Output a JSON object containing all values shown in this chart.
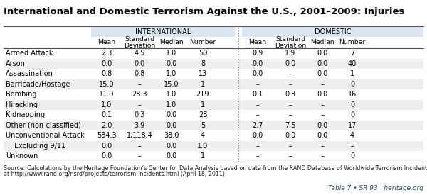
{
  "title": "International and Domestic Terrorism Against the U.S., 2001–2009: Injuries",
  "rows": [
    {
      "label": "Armed Attack",
      "intl": [
        "2.3",
        "4.5",
        "1.0",
        "50"
      ],
      "dom": [
        "0.9",
        "1.9",
        "0.0",
        "7"
      ]
    },
    {
      "label": "Arson",
      "intl": [
        "0.0",
        "0.0",
        "0.0",
        "8"
      ],
      "dom": [
        "0.0",
        "0.0",
        "0.0",
        "40"
      ]
    },
    {
      "label": "Assassination",
      "intl": [
        "0.8",
        "0.8",
        "1.0",
        "13"
      ],
      "dom": [
        "0.0",
        "–",
        "0.0",
        "1"
      ]
    },
    {
      "label": "Barricade/Hostage",
      "intl": [
        "15.0",
        "–",
        "15.0",
        "1"
      ],
      "dom": [
        "–",
        "–",
        "–",
        "0"
      ]
    },
    {
      "label": "Bombing",
      "intl": [
        "11.9",
        "28.3",
        "1.0",
        "219"
      ],
      "dom": [
        "0.1",
        "0.3",
        "0.0",
        "16"
      ]
    },
    {
      "label": "Hijacking",
      "intl": [
        "1.0",
        "–",
        "1.0",
        "1"
      ],
      "dom": [
        "–",
        "–",
        "–",
        "0"
      ]
    },
    {
      "label": "Kidnapping",
      "intl": [
        "0.1",
        "0.3",
        "0.0",
        "28"
      ],
      "dom": [
        "–",
        "–",
        "–",
        "0"
      ]
    },
    {
      "label": "Other (non-classified)",
      "intl": [
        "2.0",
        "3.9",
        "0.0",
        "5"
      ],
      "dom": [
        "2.7",
        "7.5",
        "0.0",
        "17"
      ]
    },
    {
      "label": "Unconventional Attack",
      "intl": [
        "584.3",
        "1,118.4",
        "38.0",
        "4"
      ],
      "dom": [
        "0.0",
        "0.0",
        "0.0",
        "4"
      ]
    },
    {
      "label": "  Excluding 9/11",
      "intl": [
        "0.0",
        "–",
        "0.0",
        "1.0"
      ],
      "dom": [
        "–",
        "–",
        "–",
        "–"
      ]
    },
    {
      "label": "Unknown",
      "intl": [
        "0.0",
        "–",
        "0.0",
        "1"
      ],
      "dom": [
        "–",
        "–",
        "–",
        "0"
      ]
    }
  ],
  "source_line1": "Source: Calculations by the Heritage Foundation’s Center for Data Analysis based on data from the RAND Database of Worldwide Terrorism Incidents,",
  "source_line2": "at http://www.rand.org/nsrd/projects/terrorism-incidents.html (April 18, 2011).",
  "footer": "Table 7 • SR 93   heritage.org",
  "header_bg": "#dce6f1",
  "stripe_bg": "#efefef",
  "sep_color": "#888888",
  "line_color": "#555555",
  "title_fs": 9.5,
  "header_fs": 7.0,
  "body_fs": 7.0,
  "source_fs": 5.8,
  "footer_fs": 6.5
}
